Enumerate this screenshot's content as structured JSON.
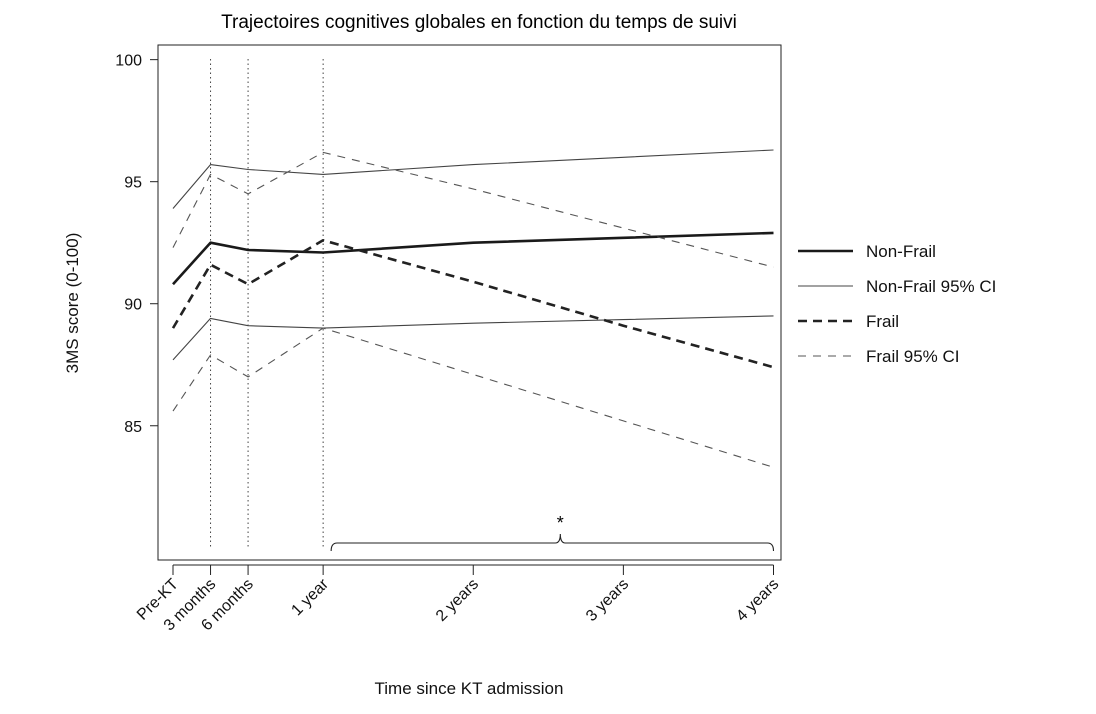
{
  "chart_data": {
    "type": "line",
    "title": "Trajectoires cognitives globales en fonction du temps de suivi",
    "xlabel": "Time since KT admission",
    "ylabel": "3MS score (0-100)",
    "ylim": [
      79.5,
      100.6
    ],
    "xlim": [
      -0.1,
      4.05
    ],
    "grid": false,
    "legend_position": "right",
    "y_ticks": [
      85,
      90,
      95,
      100
    ],
    "x_ticks": [
      {
        "x": 0,
        "label": "Pre-KT"
      },
      {
        "x": 0.25,
        "label": "3 months"
      },
      {
        "x": 0.5,
        "label": "6 months"
      },
      {
        "x": 1,
        "label": "1 year"
      },
      {
        "x": 2,
        "label": "2 years"
      },
      {
        "x": 3,
        "label": "3 years"
      },
      {
        "x": 4,
        "label": "4 years"
      }
    ],
    "reference_lines_x": [
      0.25,
      0.5,
      1
    ],
    "annotation": {
      "text": "*",
      "from_x": 1,
      "to_x": 4
    },
    "series": [
      {
        "name": "Non-Frail",
        "style": "solid-thick",
        "color": "#1a1a1a",
        "x": [
          0,
          0.25,
          0.5,
          1,
          2,
          3,
          4
        ],
        "y": [
          90.8,
          92.5,
          92.2,
          92.1,
          92.5,
          92.7,
          92.9
        ]
      },
      {
        "name": "Non-Frail 95% CI",
        "style": "solid-thin",
        "color": "#444444",
        "x": [
          0,
          0.25,
          0.5,
          1,
          2,
          3,
          4
        ],
        "y": [
          93.9,
          95.7,
          95.5,
          95.3,
          95.7,
          96.0,
          96.3
        ]
      },
      {
        "name": "Non-Frail 95% CI",
        "style": "solid-thin",
        "color": "#444444",
        "in_legend": false,
        "x": [
          0,
          0.25,
          0.5,
          1,
          2,
          3,
          4
        ],
        "y": [
          87.7,
          89.4,
          89.1,
          89.0,
          89.2,
          89.35,
          89.5
        ]
      },
      {
        "name": "Frail",
        "style": "dashed-thick",
        "color": "#222222",
        "x": [
          0,
          0.25,
          0.5,
          1,
          2,
          3,
          4
        ],
        "y": [
          89.0,
          91.6,
          90.8,
          92.6,
          90.9,
          89.1,
          87.4
        ]
      },
      {
        "name": "Frail 95% CI",
        "style": "dashed-thin",
        "color": "#555555",
        "x": [
          0,
          0.25,
          0.5,
          1,
          2,
          3,
          4
        ],
        "y": [
          92.3,
          95.3,
          94.5,
          96.2,
          94.7,
          93.1,
          91.5
        ]
      },
      {
        "name": "Frail 95% CI",
        "style": "dashed-thin",
        "color": "#555555",
        "in_legend": false,
        "x": [
          0,
          0.25,
          0.5,
          1,
          2,
          3,
          4
        ],
        "y": [
          85.6,
          87.9,
          87.0,
          89.0,
          87.1,
          85.2,
          83.3
        ]
      }
    ]
  }
}
